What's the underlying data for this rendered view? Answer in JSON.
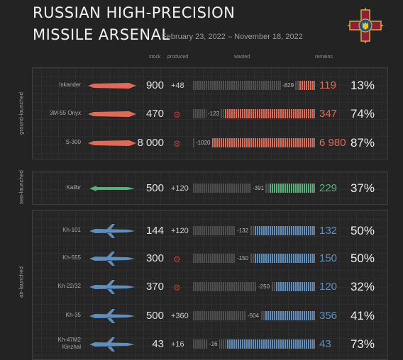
{
  "header": {
    "title_line1": "RUSSIAN HIGH-PRECISION",
    "title_line2": "MISSILE ARSENAL",
    "subtitle": "February 23, 2022 – November 18, 2022"
  },
  "columns": {
    "stock": "stock",
    "produced": "produced",
    "wasted": "wasted",
    "remains": "remains"
  },
  "groups": [
    {
      "label": "ground-launched"
    },
    {
      "label": "sea-launched"
    },
    {
      "label": "air-launched"
    }
  ],
  "colors": {
    "ground": "#e06a55",
    "sea": "#58b177",
    "air": "#5f8fbf",
    "wasted": "#4f4f4f",
    "gear": "#c0392b"
  },
  "chart_data": {
    "type": "bar",
    "series_fields": [
      "name",
      "stock",
      "produced",
      "wasted",
      "remains",
      "percent"
    ],
    "rows": [
      {
        "name": "Iskander",
        "group": "ground-launched",
        "stock": "900",
        "produced": "+48",
        "wasted": "-829",
        "remains": "119",
        "percent": "13%",
        "stock_value": 900,
        "produced_value": 48,
        "wasted_value": 829,
        "remains_value": 119
      },
      {
        "name": "3M-55 Onyx",
        "group": "ground-launched",
        "stock": "470",
        "produced": "",
        "wasted": "-123",
        "remains": "347",
        "percent": "74%",
        "stock_value": 470,
        "produced_value": 0,
        "wasted_value": 123,
        "remains_value": 347
      },
      {
        "name": "S-300",
        "group": "ground-launched",
        "stock": "8 000",
        "produced": "",
        "wasted": "-1020",
        "remains": "6 980",
        "percent": "87%",
        "stock_value": 8000,
        "produced_value": 0,
        "wasted_value": 1020,
        "remains_value": 6980
      },
      {
        "name": "Kalibr",
        "group": "sea-launched",
        "stock": "500",
        "produced": "+120",
        "wasted": "-391",
        "remains": "229",
        "percent": "37%",
        "stock_value": 500,
        "produced_value": 120,
        "wasted_value": 391,
        "remains_value": 229
      },
      {
        "name": "Kh-101",
        "group": "air-launched",
        "stock": "144",
        "produced": "+120",
        "wasted": "-132",
        "remains": "132",
        "percent": "50%",
        "stock_value": 144,
        "produced_value": 120,
        "wasted_value": 132,
        "remains_value": 132
      },
      {
        "name": "Kh-555",
        "group": "air-launched",
        "stock": "300",
        "produced": "",
        "wasted": "-150",
        "remains": "150",
        "percent": "50%",
        "stock_value": 300,
        "produced_value": 0,
        "wasted_value": 150,
        "remains_value": 150
      },
      {
        "name": "Kh-22/32",
        "group": "air-launched",
        "stock": "370",
        "produced": "",
        "wasted": "-250",
        "remains": "120",
        "percent": "32%",
        "stock_value": 370,
        "produced_value": 0,
        "wasted_value": 250,
        "remains_value": 120
      },
      {
        "name": "Kh-35",
        "group": "air-launched",
        "stock": "500",
        "produced": "+360",
        "wasted": "-504",
        "remains": "356",
        "percent": "41%",
        "stock_value": 500,
        "produced_value": 360,
        "wasted_value": 504,
        "remains_value": 356
      },
      {
        "name": "Kh-47M2\nKinzhal",
        "group": "air-launched",
        "stock": "43",
        "produced": "+16",
        "wasted": "-16",
        "remains": "43",
        "percent": "73%",
        "stock_value": 43,
        "produced_value": 16,
        "wasted_value": 16,
        "remains_value": 43
      }
    ]
  }
}
